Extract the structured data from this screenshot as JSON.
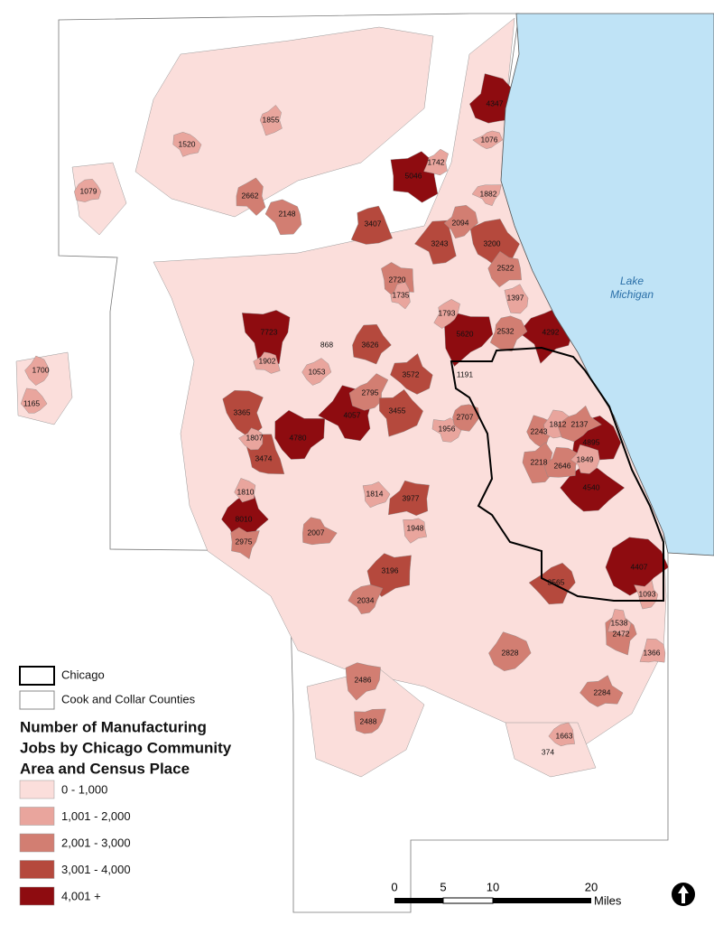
{
  "legend": {
    "items": [
      {
        "label": "Chicago"
      },
      {
        "label": "Cook and Collar Counties"
      }
    ],
    "title": [
      "Number of Manufacturing",
      "Jobs by Chicago Community",
      "Area and Census Place"
    ],
    "classes": [
      {
        "label": "0 - 1,000",
        "color": "#fbdedb"
      },
      {
        "label": "1,001 - 2,000",
        "color": "#e9a59d"
      },
      {
        "label": "2,001 - 3,000",
        "color": "#d27e72"
      },
      {
        "label": "3,001 - 4,000",
        "color": "#b5493d"
      },
      {
        "label": "4,001 +",
        "color": "#8e0c10"
      }
    ]
  },
  "lake_label": [
    "Lake",
    "Michigan"
  ],
  "scale": {
    "ticks": [
      0,
      5,
      10,
      20
    ],
    "unit": "Miles"
  },
  "labels": [
    4347,
    5046,
    7723,
    5620,
    4292,
    4895,
    4540,
    4407,
    4780,
    4057,
    3365,
    3474,
    8010,
    2975,
    3196,
    2034,
    2486,
    2828,
    2472,
    2284,
    3977,
    1948,
    2007,
    3407,
    2662,
    2148,
    1855,
    1520,
    1079,
    1700,
    1165,
    3626,
    3572,
    2795,
    3455,
    1902,
    1807,
    1810,
    1814,
    2720,
    1735,
    3243,
    3200,
    2522,
    1882,
    1742,
    1076,
    2094,
    1191,
    2532,
    1397,
    1793,
    868,
    1053,
    1956,
    2707,
    2243,
    2218,
    2646,
    1812,
    2137,
    1366,
    1538,
    1663,
    374,
    2488,
    1093,
    3565,
    1849
  ]
}
